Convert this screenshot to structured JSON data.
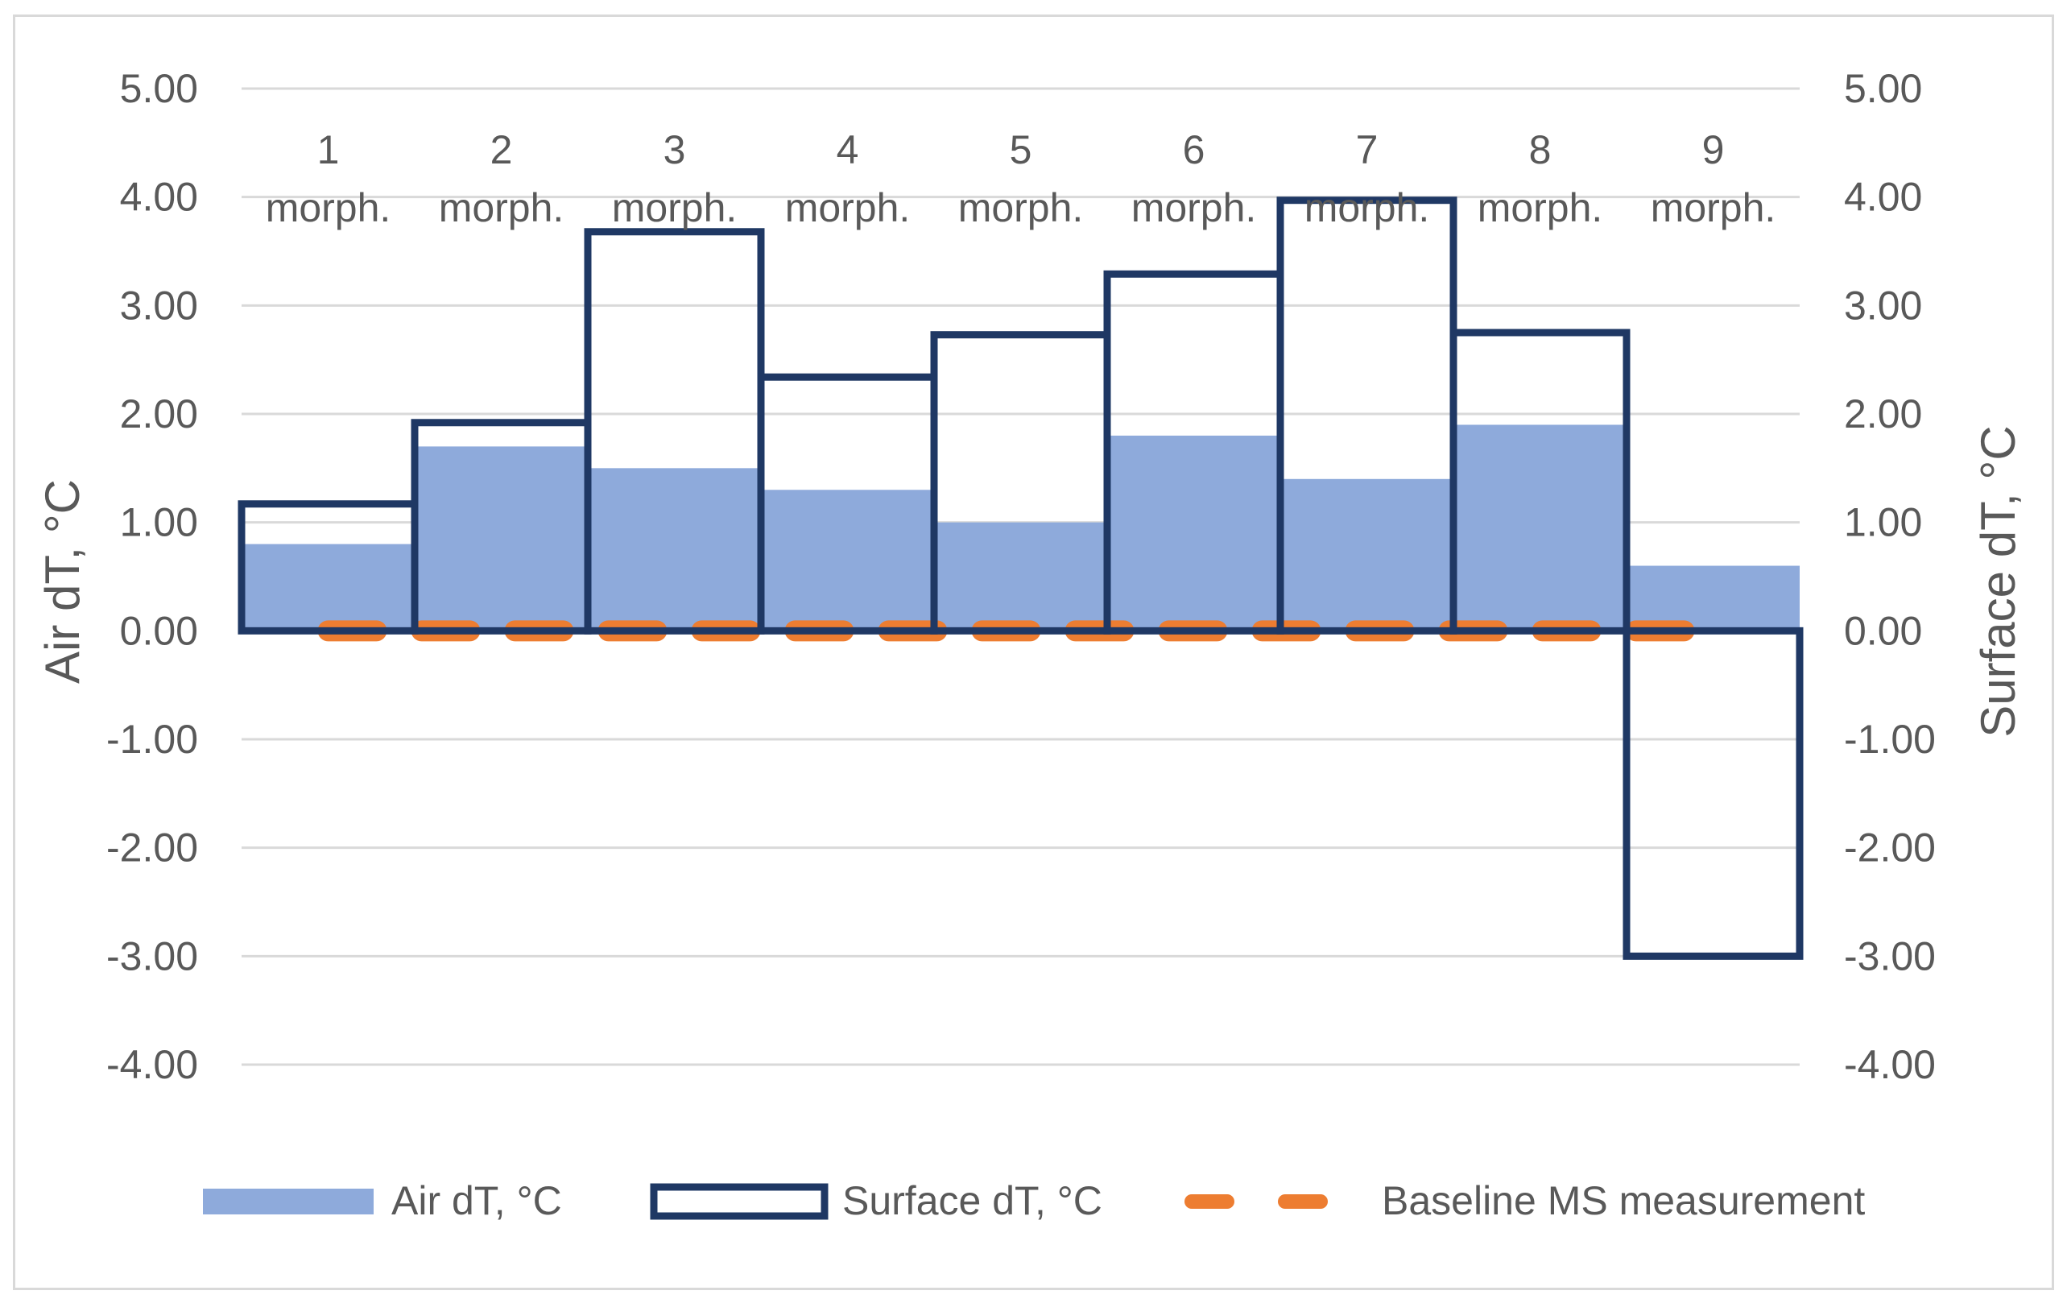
{
  "chart_data": {
    "type": "bar",
    "title": "",
    "categories": [
      "1 morph.",
      "2 morph.",
      "3 morph.",
      "4 morph.",
      "5 morph.",
      "6 morph.",
      "7 morph.",
      "8 morph.",
      "9 morph."
    ],
    "category_lines": [
      [
        "1",
        "morph."
      ],
      [
        "2",
        "morph."
      ],
      [
        "3",
        "morph."
      ],
      [
        "4",
        "morph."
      ],
      [
        "5",
        "morph."
      ],
      [
        "6",
        "morph."
      ],
      [
        "7",
        "morph."
      ],
      [
        "8",
        "morph."
      ],
      [
        "9",
        "morph."
      ]
    ],
    "series": [
      {
        "name": "Air dT, °C",
        "axis": "left",
        "style": "filled-bar",
        "values": [
          0.8,
          1.7,
          1.5,
          1.3,
          1.0,
          1.8,
          1.4,
          1.9,
          0.6
        ]
      },
      {
        "name": "Surface dT, °C",
        "axis": "right",
        "style": "outlined-bar",
        "values": [
          1.17,
          1.92,
          3.68,
          2.34,
          2.73,
          3.29,
          3.97,
          2.75,
          -3.0
        ]
      },
      {
        "name": "Baseline MS measurement",
        "axis": "left",
        "style": "dashed-line",
        "values": [
          0,
          0,
          0,
          0,
          0,
          0,
          0,
          0,
          0
        ]
      }
    ],
    "ylabel": "Air dT, °C",
    "ylabel_right": "Surface dT, °C",
    "ylim": [
      -4,
      5
    ],
    "ylim_right": [
      -4,
      5
    ],
    "yticks": [
      "5.00",
      "4.00",
      "3.00",
      "2.00",
      "1.00",
      "0.00",
      "-1.00",
      "-2.00",
      "-3.00",
      "-4.00"
    ],
    "yticks_right": [
      "5.00",
      "4.00",
      "3.00",
      "2.00",
      "1.00",
      "0.00",
      "-1.00",
      "-2.00",
      "-3.00",
      "-4.00"
    ],
    "grid": true,
    "legend_position": "bottom"
  },
  "colors": {
    "air": "#8eaadb",
    "surface": "#1f3864",
    "baseline": "#ed7d31",
    "grid": "#d9d9d9",
    "text": "#595959"
  }
}
